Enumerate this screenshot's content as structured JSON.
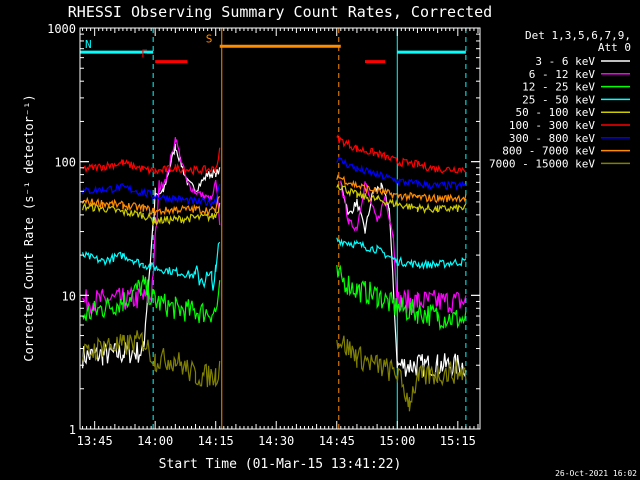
{
  "chart_data": {
    "type": "line",
    "title": "RHESSI Observing Summary Count Rates, Corrected",
    "xlabel": "Start Time (01-Mar-15 13:41:22)",
    "ylabel": "Corrected Count Rate (s⁻¹ detector⁻¹)",
    "y_scale": "log",
    "ylim": [
      1,
      1000
    ],
    "xlim": [
      "13:41:22",
      "15:20:30"
    ],
    "x_ticks": [
      "13:45",
      "14:00",
      "14:15",
      "14:30",
      "14:45",
      "15:00",
      "15:15"
    ],
    "y_ticks": [
      "1",
      "10",
      "100",
      "1000"
    ],
    "legend_title_lines": [
      "Det 1,3,5,6,7,9,",
      "Att 0"
    ],
    "legend_position": "right",
    "series": [
      {
        "name": "3 - 6 keV",
        "color": "#ffffff",
        "segments": [
          {
            "x": [
              "13:42",
              "13:47",
              "13:52",
              "13:57",
              "14:00",
              "14:02",
              "14:05",
              "14:08",
              "14:10",
              "14:13",
              "14:15",
              "14:16"
            ],
            "y": [
              3.5,
              3.6,
              3.7,
              3.8,
              54,
              60,
              130,
              70,
              62,
              80,
              82,
              85
            ]
          },
          {
            "x": [
              "14:46",
              "14:48",
              "14:50",
              "14:52",
              "14:54",
              "14:56",
              "14:58",
              "15:00",
              "15:05",
              "15:10",
              "15:17"
            ],
            "y": [
              70,
              40,
              50,
              30,
              60,
              65,
              45,
              3,
              3,
              3,
              3
            ]
          }
        ]
      },
      {
        "name": "6 - 12 keV",
        "color": "#ff00ff",
        "segments": [
          {
            "x": [
              "13:42",
              "13:47",
              "13:52",
              "13:57",
              "13:59",
              "14:01",
              "14:03",
              "14:05",
              "14:08",
              "14:10",
              "14:12",
              "14:14",
              "14:15",
              "14:16"
            ],
            "y": [
              9,
              9.2,
              9.3,
              9.5,
              9.7,
              62,
              80,
              150,
              68,
              60,
              55,
              52,
              70,
              35
            ]
          },
          {
            "x": [
              "14:46",
              "14:48",
              "14:50",
              "14:52",
              "14:55",
              "14:57",
              "14:59",
              "15:00",
              "15:05",
              "15:10",
              "15:17"
            ],
            "y": [
              70,
              35,
              32,
              70,
              35,
              55,
              28,
              9,
              9,
              9,
              9
            ]
          }
        ]
      },
      {
        "name": "12 - 25 keV",
        "color": "#00ff00",
        "segments": [
          {
            "x": [
              "13:42",
              "13:47",
              "13:52",
              "13:57",
              "14:00",
              "14:05",
              "14:10",
              "14:15",
              "14:16"
            ],
            "y": [
              7,
              8,
              9,
              12,
              9,
              8,
              7.5,
              7.5,
              11
            ]
          },
          {
            "x": [
              "14:45",
              "14:50",
              "14:55",
              "15:00",
              "15:05",
              "15:10",
              "15:17"
            ],
            "y": [
              14,
              11,
              10,
              8,
              7.5,
              7,
              6.5
            ]
          }
        ]
      },
      {
        "name": "25 - 50 keV",
        "color": "#00ffff",
        "segments": [
          {
            "x": [
              "13:42",
              "13:47",
              "13:52",
              "13:57",
              "14:00",
              "14:05",
              "14:10",
              "14:14",
              "14:15",
              "14:16"
            ],
            "y": [
              20,
              18,
              20,
              17,
              16,
              15,
              14,
              13,
              14,
              26
            ]
          },
          {
            "x": [
              "14:45",
              "14:50",
              "14:55",
              "15:00",
              "15:05",
              "15:10",
              "15:17"
            ],
            "y": [
              26,
              24,
              22,
              18,
              17,
              17,
              18
            ]
          }
        ]
      },
      {
        "name": "50 - 100 keV",
        "color": "#cccc00",
        "segments": [
          {
            "x": [
              "13:42",
              "13:47",
              "13:52",
              "13:57",
              "14:00",
              "14:05",
              "14:10",
              "14:15",
              "14:16"
            ],
            "y": [
              46,
              45,
              42,
              40,
              36,
              37,
              38,
              39,
              48
            ]
          },
          {
            "x": [
              "14:45",
              "14:50",
              "14:55",
              "15:00",
              "15:05",
              "15:10",
              "15:17"
            ],
            "y": [
              68,
              56,
              52,
              48,
              45,
              44,
              45
            ]
          }
        ]
      },
      {
        "name": "100 - 300 keV",
        "color": "#ff0000",
        "segments": [
          {
            "x": [
              "13:42",
              "13:47",
              "13:52",
              "13:57",
              "14:00",
              "14:05",
              "14:10",
              "14:15",
              "14:16"
            ],
            "y": [
              88,
              92,
              98,
              88,
              84,
              90,
              86,
              88,
              120
            ]
          },
          {
            "x": [
              "14:45",
              "14:50",
              "14:55",
              "15:00",
              "15:05",
              "15:10",
              "15:17"
            ],
            "y": [
              150,
              125,
              115,
              100,
              95,
              88,
              88
            ]
          }
        ]
      },
      {
        "name": "300 - 800 keV",
        "color": "#0000ff",
        "segments": [
          {
            "x": [
              "13:42",
              "13:47",
              "13:52",
              "13:57",
              "14:00",
              "14:05",
              "14:10",
              "14:15",
              "14:16"
            ],
            "y": [
              60,
              62,
              64,
              59,
              55,
              53,
              50,
              50,
              70
            ]
          },
          {
            "x": [
              "14:45",
              "14:50",
              "14:55",
              "15:00",
              "15:05",
              "15:10",
              "15:17"
            ],
            "y": [
              105,
              88,
              80,
              72,
              68,
              66,
              66
            ]
          }
        ]
      },
      {
        "name": "800 - 7000 keV",
        "color": "#ff8c00",
        "segments": [
          {
            "x": [
              "13:42",
              "13:47",
              "13:52",
              "13:57",
              "14:00",
              "14:05",
              "14:10",
              "14:15",
              "14:16"
            ],
            "y": [
              50,
              49,
              47,
              45,
              42,
              44,
              44,
              43,
              55
            ]
          },
          {
            "x": [
              "14:45",
              "14:50",
              "14:55",
              "15:00",
              "15:05",
              "15:10",
              "15:17"
            ],
            "y": [
              78,
              66,
              60,
              56,
              54,
              53,
              54
            ]
          }
        ]
      },
      {
        "name": "7000 - 15000 keV",
        "color": "#808000",
        "segments": [
          {
            "x": [
              "13:42",
              "13:47",
              "13:52",
              "13:57",
              "14:00",
              "14:05",
              "14:10",
              "14:15",
              "14:16"
            ],
            "y": [
              3.5,
              4.2,
              4.2,
              4.6,
              3.3,
              3.3,
              2.5,
              2.5,
              3.0
            ]
          },
          {
            "x": [
              "14:45",
              "14:50",
              "14:55",
              "15:00",
              "15:03",
              "15:05",
              "15:10",
              "15:17"
            ],
            "y": [
              4.8,
              3.5,
              3.0,
              2.6,
              1.6,
              2.4,
              2.6,
              2.7
            ]
          }
        ]
      }
    ],
    "annotations": [
      {
        "label": "N",
        "color": "#00ffff",
        "ranges": [
          [
            "13:41:22",
            "13:59:30"
          ],
          [
            "15:00",
            "15:17"
          ]
        ],
        "y": 660
      },
      {
        "label": "F",
        "color": "#ff0000",
        "ranges": [
          [
            "14:00",
            "14:08"
          ],
          [
            "14:52",
            "14:57"
          ]
        ],
        "y": 560
      },
      {
        "label": "S",
        "color": "#ff8c00",
        "ranges": [
          [
            "14:16",
            "14:46"
          ]
        ],
        "y": 730
      }
    ],
    "vlines": [
      {
        "x": "13:41:22",
        "color": "#00ffff",
        "style": "solid"
      },
      {
        "x": "13:59:30",
        "color": "#00ffff",
        "style": "dashed"
      },
      {
        "x": "14:16:30",
        "color": "#ff8c00",
        "style": "solid"
      },
      {
        "x": "14:45:30",
        "color": "#ff8c00",
        "style": "dashed"
      },
      {
        "x": "15:00:00",
        "color": "#00ffff",
        "style": "solid"
      },
      {
        "x": "15:17:00",
        "color": "#00ffff",
        "style": "dashed"
      }
    ]
  },
  "footer": {
    "timestamp": "26-Oct-2021 16:02"
  }
}
